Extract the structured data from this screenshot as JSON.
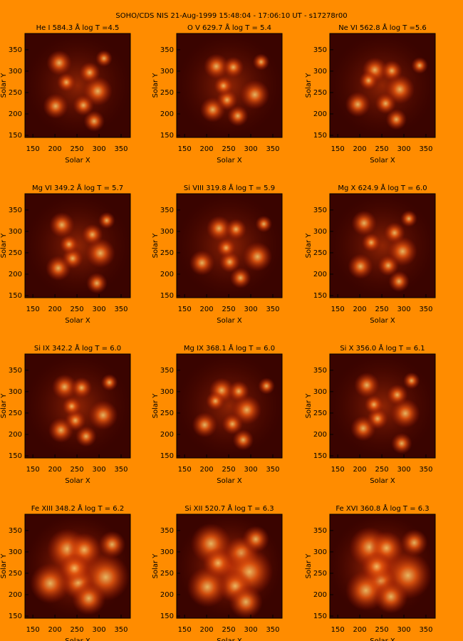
{
  "title": "SOHO/CDS NIS  21-Aug-1999 15:48:04 - 17:06:10 UT - s17278r00",
  "x_label": "Solar X",
  "y_label": "Solar Y",
  "xlim": [
    132,
    371
  ],
  "ylim": [
    145,
    388
  ],
  "xticks": [
    150,
    200,
    250,
    300,
    350
  ],
  "yticks": [
    150,
    200,
    250,
    300,
    350
  ],
  "panels": [
    {
      "title": "He I  584.3 Å log T =4.5"
    },
    {
      "title": "O V  629.7 Å log T = 5.4"
    },
    {
      "title": "Ne VI  562.8 Å log T =5.6"
    },
    {
      "title": "Mg VI  349.2 Å log T = 5.7"
    },
    {
      "title": "Si VIII 319.8 Å log T = 5.9"
    },
    {
      "title": "Mg X  624.9 Å log T = 6.0"
    },
    {
      "title": "Si IX  342.2 Å log T = 6.0"
    },
    {
      "title": "Mg IX  368.1 Å log T = 6.0"
    },
    {
      "title": "Si X  356.0 Å log T = 6.1"
    },
    {
      "title": "Fe XIII  348.2 Å log T = 6.2"
    },
    {
      "title": "Si XII  520.7 Å log T = 6.3"
    },
    {
      "title": "Fe XVI  360.8 Å log T = 6.3"
    }
  ]
}
